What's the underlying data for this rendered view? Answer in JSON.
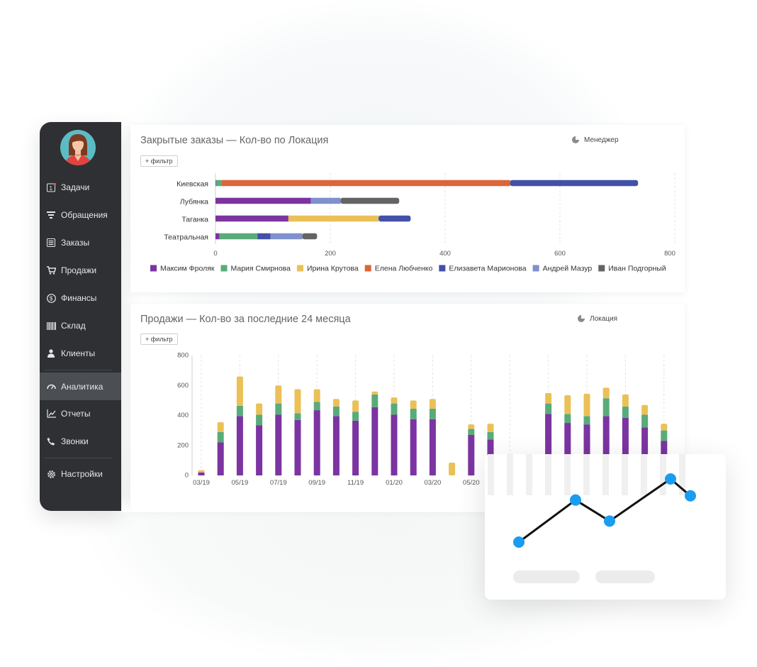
{
  "sidebar": {
    "items": [
      {
        "label": "Задачи",
        "icon": "task-icon",
        "badge": "1"
      },
      {
        "label": "Обращения",
        "icon": "filter-icon"
      },
      {
        "label": "Заказы",
        "icon": "orders-icon"
      },
      {
        "label": "Продажи",
        "icon": "cart-icon"
      },
      {
        "label": "Финансы",
        "icon": "dollar-icon"
      },
      {
        "label": "Склад",
        "icon": "barcode-icon"
      },
      {
        "label": "Клиенты",
        "icon": "clients-icon"
      },
      {
        "label": "Аналитика",
        "icon": "gauge-icon",
        "active": true
      },
      {
        "label": "Отчеты",
        "icon": "chart-line-icon"
      },
      {
        "label": "Звонки",
        "icon": "phone-icon"
      },
      {
        "label": "Настройки",
        "icon": "gear-icon"
      }
    ]
  },
  "panel1": {
    "title": "Закрытые заказы — Кол-во по Локация",
    "filter_label": "+ фильтр",
    "group_label": "Менеджер"
  },
  "panel2": {
    "title": "Продажи — Кол-во за последние 24 месяца",
    "filter_label": "+ фильтр",
    "group_label": "Локация"
  },
  "colors": {
    "Максим Фроляк": "#7b34a1",
    "Мария Смирнова": "#5aab7a",
    "Ирина Крутова": "#ebc056",
    "Елена Любченко": "#dd6538",
    "Елизавета Марионова": "#4350a8",
    "Андрей Мазур": "#8090cc",
    "Иван Подгорный": "#626466",
    "accent": "#1a9cf0"
  },
  "chart_data": [
    {
      "type": "bar",
      "orientation": "horizontal",
      "stacked": true,
      "title": "Закрытые заказы — Кол-во по Локация",
      "categories": [
        "Киевская",
        "Лубянка",
        "Таганка",
        "Театральная"
      ],
      "xlim": [
        0,
        800
      ],
      "xticks": [
        0,
        200,
        400,
        600,
        800
      ],
      "series": [
        {
          "name": "Максим Фроляк",
          "values": [
            1,
            166,
            127,
            7
          ]
        },
        {
          "name": "Мария Смирнова",
          "values": [
            10,
            0,
            0,
            66
          ]
        },
        {
          "name": "Ирина Крутова",
          "values": [
            0,
            0,
            157,
            0
          ]
        },
        {
          "name": "Елена Любченко",
          "values": [
            502,
            0,
            0,
            0
          ]
        },
        {
          "name": "Елизавета Марионова",
          "values": [
            223,
            0,
            56,
            23
          ]
        },
        {
          "name": "Андрей Мазур",
          "values": [
            0,
            52,
            0,
            55
          ]
        },
        {
          "name": "Иван Подгорный",
          "values": [
            0,
            102,
            0,
            26
          ]
        }
      ],
      "legend": [
        "Максим Фроляк",
        "Мария Смирнова",
        "Ирина Крутова",
        "Елена Любченко",
        "Елизавета Марионова",
        "Андрей Мазур",
        "Иван Подгорный"
      ]
    },
    {
      "type": "bar",
      "orientation": "vertical",
      "stacked": true,
      "title": "Продажи — Кол-во за последние 24 месяца",
      "ylim": [
        0,
        800
      ],
      "yticks": [
        0,
        200,
        400,
        600,
        800
      ],
      "xtick_labels": [
        "03/19",
        "05/19",
        "07/19",
        "09/19",
        "11/19",
        "01/20",
        "03/20",
        "05/20"
      ],
      "series": [
        {
          "name": "Максим Фроляк",
          "values": [
            20,
            220,
            395,
            335,
            405,
            370,
            435,
            395,
            365,
            455,
            405,
            375,
            375,
            0,
            270,
            240,
            0,
            0,
            410,
            350,
            340,
            395,
            385,
            320,
            230
          ]
        },
        {
          "name": "Мария Смирнова",
          "values": [
            0,
            70,
            70,
            70,
            75,
            45,
            55,
            65,
            60,
            85,
            75,
            70,
            70,
            0,
            40,
            50,
            0,
            0,
            70,
            60,
            55,
            120,
            75,
            85,
            70
          ]
        },
        {
          "name": "Ирина Крутова",
          "values": [
            15,
            65,
            195,
            75,
            120,
            160,
            85,
            50,
            75,
            20,
            40,
            55,
            65,
            85,
            30,
            55,
            0,
            0,
            70,
            125,
            150,
            70,
            80,
            65,
            45
          ]
        }
      ]
    },
    {
      "type": "line",
      "title": "",
      "x": [
        1,
        2,
        3,
        4,
        5
      ],
      "values": [
        1,
        3,
        2,
        4,
        3.2
      ],
      "color": "#1a9cf0"
    }
  ]
}
